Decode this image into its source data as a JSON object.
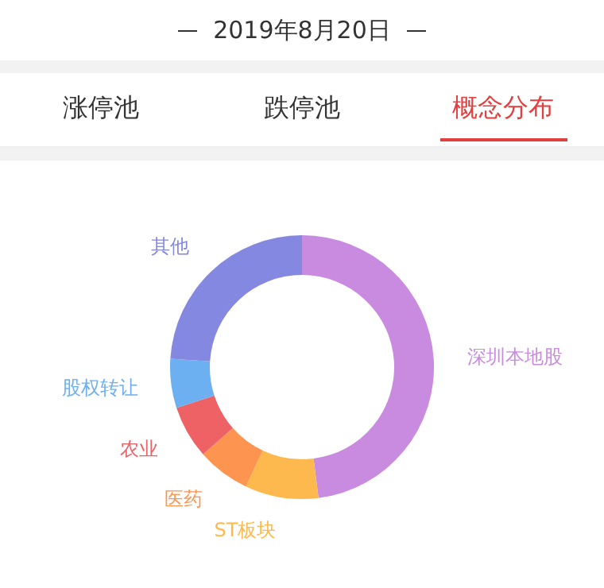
{
  "chart_data": {
    "type": "donut",
    "title": "2019年8月20日",
    "annotations": [
      "涨停池",
      "跌停池",
      "概念分布"
    ],
    "categories": [
      "深圳本地股",
      "ST板块",
      "医药",
      "农业",
      "股权转让",
      "其他"
    ],
    "values": [
      48,
      9,
      6.5,
      6.5,
      6,
      24
    ],
    "colors": [
      "#c98be0",
      "#fdb84e",
      "#fd9550",
      "#ee6266",
      "#6cb0f2",
      "#8588e0"
    ]
  }
}
